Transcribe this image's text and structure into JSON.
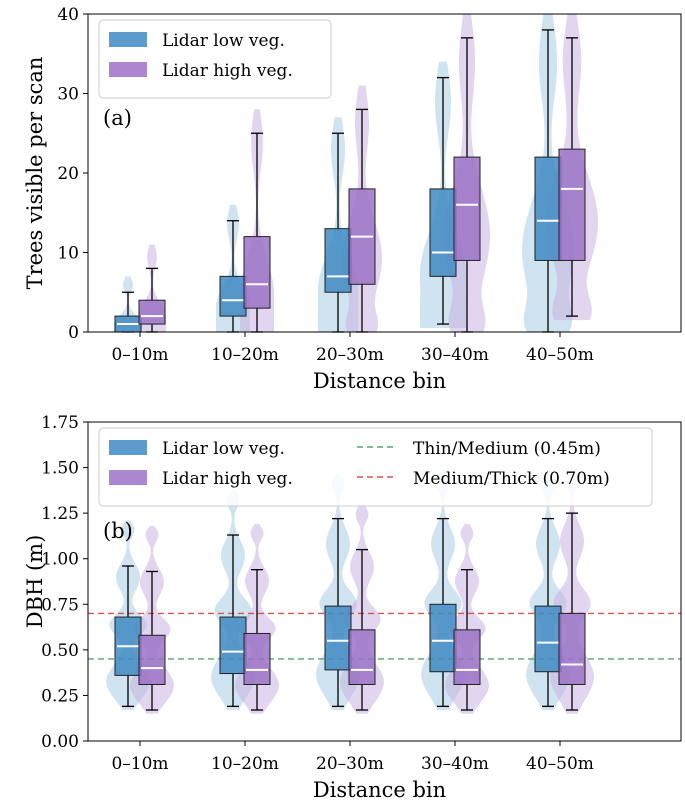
{
  "chart_data": [
    {
      "type": "box-violin",
      "panel_label": "(a)",
      "xlabel": "Distance bin",
      "ylabel": "Trees visible per scan",
      "ylim": [
        0,
        40
      ],
      "yticks": [
        0,
        10,
        20,
        30,
        40
      ],
      "categories": [
        "0–10m",
        "10–20m",
        "20–30m",
        "30–40m",
        "40–50m"
      ],
      "legend_position": "upper-left",
      "series": [
        {
          "name": "Lidar low veg.",
          "color": "#3f8ac2",
          "violin_color": "#a9cce4",
          "boxes": [
            {
              "min": 0,
              "q1": 0,
              "median": 1,
              "q3": 2,
              "max": 5
            },
            {
              "min": 0,
              "q1": 2,
              "median": 4,
              "q3": 7,
              "max": 14
            },
            {
              "min": 0,
              "q1": 5,
              "median": 7,
              "q3": 13,
              "max": 25
            },
            {
              "min": 1,
              "q1": 7,
              "median": 10,
              "q3": 18,
              "max": 32
            },
            {
              "min": 0,
              "q1": 9,
              "median": 14,
              "q3": 22,
              "max": 38
            }
          ]
        },
        {
          "name": "Lidar high veg.",
          "color": "#9b72c6",
          "violin_color": "#c9b3e2",
          "boxes": [
            {
              "min": 0,
              "q1": 1,
              "median": 2,
              "q3": 4,
              "max": 8
            },
            {
              "min": 0,
              "q1": 3,
              "median": 6,
              "q3": 12,
              "max": 25
            },
            {
              "min": 0,
              "q1": 6,
              "median": 12,
              "q3": 18,
              "max": 28
            },
            {
              "min": 0,
              "q1": 9,
              "median": 16,
              "q3": 22,
              "max": 37
            },
            {
              "min": 2,
              "q1": 9,
              "median": 18,
              "q3": 23,
              "max": 37
            }
          ]
        }
      ]
    },
    {
      "type": "box-violin",
      "panel_label": "(b)",
      "xlabel": "Distance bin",
      "ylabel": "DBH (m)",
      "ylim": [
        0,
        1.75
      ],
      "yticks": [
        "0.00",
        "0.25",
        "0.50",
        "0.75",
        "1.00",
        "1.25",
        "1.50",
        "1.75"
      ],
      "categories": [
        "0–10m",
        "10–20m",
        "20–30m",
        "30–40m",
        "40–50m"
      ],
      "legend_position": "upper-left",
      "series": [
        {
          "name": "Lidar low veg.",
          "color": "#3f8ac2",
          "violin_color": "#a9cce4",
          "boxes": [
            {
              "min": 0.19,
              "q1": 0.36,
              "median": 0.52,
              "q3": 0.68,
              "max": 0.96
            },
            {
              "min": 0.19,
              "q1": 0.37,
              "median": 0.49,
              "q3": 0.68,
              "max": 1.13
            },
            {
              "min": 0.19,
              "q1": 0.39,
              "median": 0.55,
              "q3": 0.74,
              "max": 1.22
            },
            {
              "min": 0.19,
              "q1": 0.38,
              "median": 0.55,
              "q3": 0.75,
              "max": 1.22
            },
            {
              "min": 0.19,
              "q1": 0.38,
              "median": 0.54,
              "q3": 0.74,
              "max": 1.22
            }
          ]
        },
        {
          "name": "Lidar high veg.",
          "color": "#9b72c6",
          "violin_color": "#c9b3e2",
          "boxes": [
            {
              "min": 0.17,
              "q1": 0.31,
              "median": 0.4,
              "q3": 0.58,
              "max": 0.93
            },
            {
              "min": 0.17,
              "q1": 0.31,
              "median": 0.39,
              "q3": 0.59,
              "max": 0.94
            },
            {
              "min": 0.17,
              "q1": 0.31,
              "median": 0.39,
              "q3": 0.61,
              "max": 1.05
            },
            {
              "min": 0.17,
              "q1": 0.31,
              "median": 0.39,
              "q3": 0.61,
              "max": 0.94
            },
            {
              "min": 0.17,
              "q1": 0.31,
              "median": 0.42,
              "q3": 0.7,
              "max": 1.25
            }
          ]
        }
      ],
      "reference_lines": [
        {
          "label": "Thin/Medium (0.45m)",
          "y": 0.45,
          "color": "#55a868"
        },
        {
          "label": "Medium/Thick (0.70m)",
          "y": 0.7,
          "color": "#d9534f"
        }
      ]
    }
  ]
}
